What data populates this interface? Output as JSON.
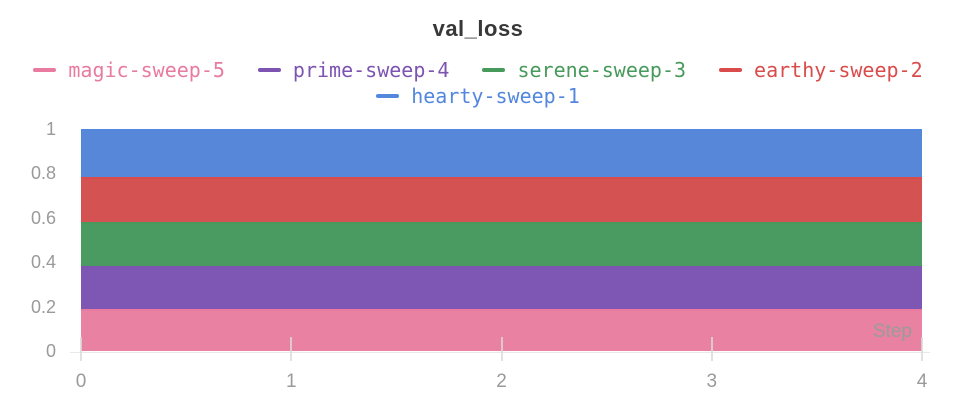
{
  "panel": {
    "title": "val_loss"
  },
  "axes": {
    "x": {
      "title": "Step",
      "tick_values": [
        0,
        1,
        2,
        3,
        4
      ],
      "tick_labels": [
        "0",
        "1",
        "2",
        "3",
        "4"
      ],
      "range": [
        0,
        4
      ]
    },
    "y": {
      "tick_values": [
        0,
        0.2,
        0.4,
        0.6,
        0.8,
        1
      ],
      "tick_labels": [
        "0",
        "0.2",
        "0.4",
        "0.6",
        "0.8",
        "1"
      ],
      "range": [
        0,
        1
      ]
    }
  },
  "legend": {
    "items": [
      {
        "label": "magic-sweep-5",
        "color": "#e87b9f"
      },
      {
        "label": "prime-sweep-4",
        "color": "#7d54b2"
      },
      {
        "label": "serene-sweep-3",
        "color": "#479a5b"
      },
      {
        "label": "earthy-sweep-2",
        "color": "#da4c4c"
      },
      {
        "label": "hearty-sweep-1",
        "color": "#5387dd"
      }
    ]
  },
  "chart_data": {
    "type": "area",
    "stacked": true,
    "title": "val_loss",
    "xlabel": "Step",
    "ylabel": "",
    "xlim": [
      0,
      4
    ],
    "ylim": [
      0,
      1
    ],
    "grid": false,
    "legend_position": "top",
    "x": [
      0,
      1,
      2,
      3,
      4
    ],
    "series": [
      {
        "name": "magic-sweep-5",
        "stroke": "#e87b9f",
        "fill": "#e881a2",
        "values": [
          0.19,
          0.19,
          0.19,
          0.19,
          0.19
        ]
      },
      {
        "name": "prime-sweep-4",
        "stroke": "#7d54b2",
        "fill": "#7e57b4",
        "values": [
          0.195,
          0.195,
          0.195,
          0.195,
          0.195
        ]
      },
      {
        "name": "serene-sweep-3",
        "stroke": "#479a5b",
        "fill": "#4a9b61",
        "values": [
          0.195,
          0.195,
          0.195,
          0.195,
          0.195
        ]
      },
      {
        "name": "earthy-sweep-2",
        "stroke": "#da4c4c",
        "fill": "#d45251",
        "values": [
          0.205,
          0.205,
          0.205,
          0.205,
          0.205
        ]
      },
      {
        "name": "hearty-sweep-1",
        "stroke": "#5387dd",
        "fill": "#5787d8",
        "values": [
          0.215,
          0.215,
          0.215,
          0.215,
          0.215
        ]
      }
    ],
    "cumulative_boundaries": [
      0,
      0.19,
      0.385,
      0.58,
      0.785,
      1.0
    ],
    "stack_order_bottom_to_top": [
      "magic-sweep-5",
      "prime-sweep-4",
      "serene-sweep-3",
      "earthy-sweep-2",
      "hearty-sweep-1"
    ]
  }
}
